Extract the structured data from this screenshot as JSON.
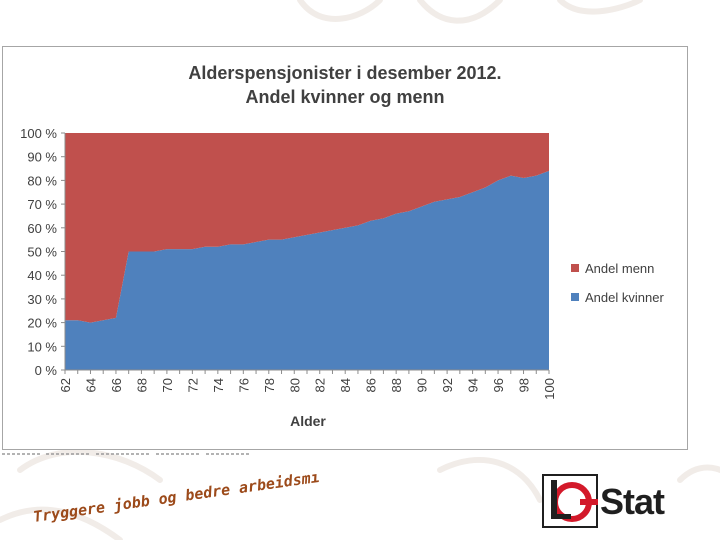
{
  "chart_data": {
    "type": "area",
    "stacked": "percent",
    "title": [
      "Alderspensjonister i desember 2012.",
      "Andel kvinner og menn"
    ],
    "xlabel": "Alder",
    "ylabel": "",
    "ylim": [
      0,
      100
    ],
    "yticks": [
      "0 %",
      "10 %",
      "20 %",
      "30 %",
      "40 %",
      "50 %",
      "60 %",
      "70 %",
      "80 %",
      "90 %",
      "100 %"
    ],
    "xticks": [
      "62",
      "64",
      "66",
      "68",
      "70",
      "72",
      "74",
      "76",
      "78",
      "80",
      "82",
      "84",
      "86",
      "88",
      "90",
      "92",
      "94",
      "96",
      "98",
      "100"
    ],
    "x": [
      62,
      63,
      64,
      65,
      66,
      67,
      68,
      69,
      70,
      71,
      72,
      73,
      74,
      75,
      76,
      77,
      78,
      79,
      80,
      81,
      82,
      83,
      84,
      85,
      86,
      87,
      88,
      89,
      90,
      91,
      92,
      93,
      94,
      95,
      96,
      97,
      98,
      99,
      100
    ],
    "series": [
      {
        "name": "Andel kvinner",
        "color": "#4f81bd",
        "values": [
          21,
          21,
          20,
          21,
          22,
          50,
          50,
          50,
          51,
          51,
          51,
          52,
          52,
          53,
          53,
          54,
          55,
          55,
          56,
          57,
          58,
          59,
          60,
          61,
          63,
          64,
          66,
          67,
          69,
          71,
          72,
          73,
          75,
          77,
          80,
          82,
          81,
          82,
          84
        ]
      },
      {
        "name": "Andel menn",
        "color": "#c0504d",
        "values": [
          79,
          79,
          80,
          79,
          78,
          50,
          50,
          50,
          49,
          49,
          49,
          48,
          48,
          47,
          47,
          46,
          45,
          45,
          44,
          43,
          42,
          41,
          40,
          39,
          37,
          36,
          34,
          33,
          31,
          29,
          28,
          27,
          25,
          23,
          20,
          18,
          19,
          18,
          16
        ]
      }
    ],
    "legend": {
      "position": "right",
      "items": [
        "Andel menn",
        "Andel kvinner"
      ]
    },
    "grid": false
  },
  "footer": {
    "slogan": "Tryggere jobb og bedre arbeidsmiljø!",
    "logo_text": "Stat",
    "slogan_color": "#9c4a1a",
    "logo_red": "#d3192a"
  }
}
